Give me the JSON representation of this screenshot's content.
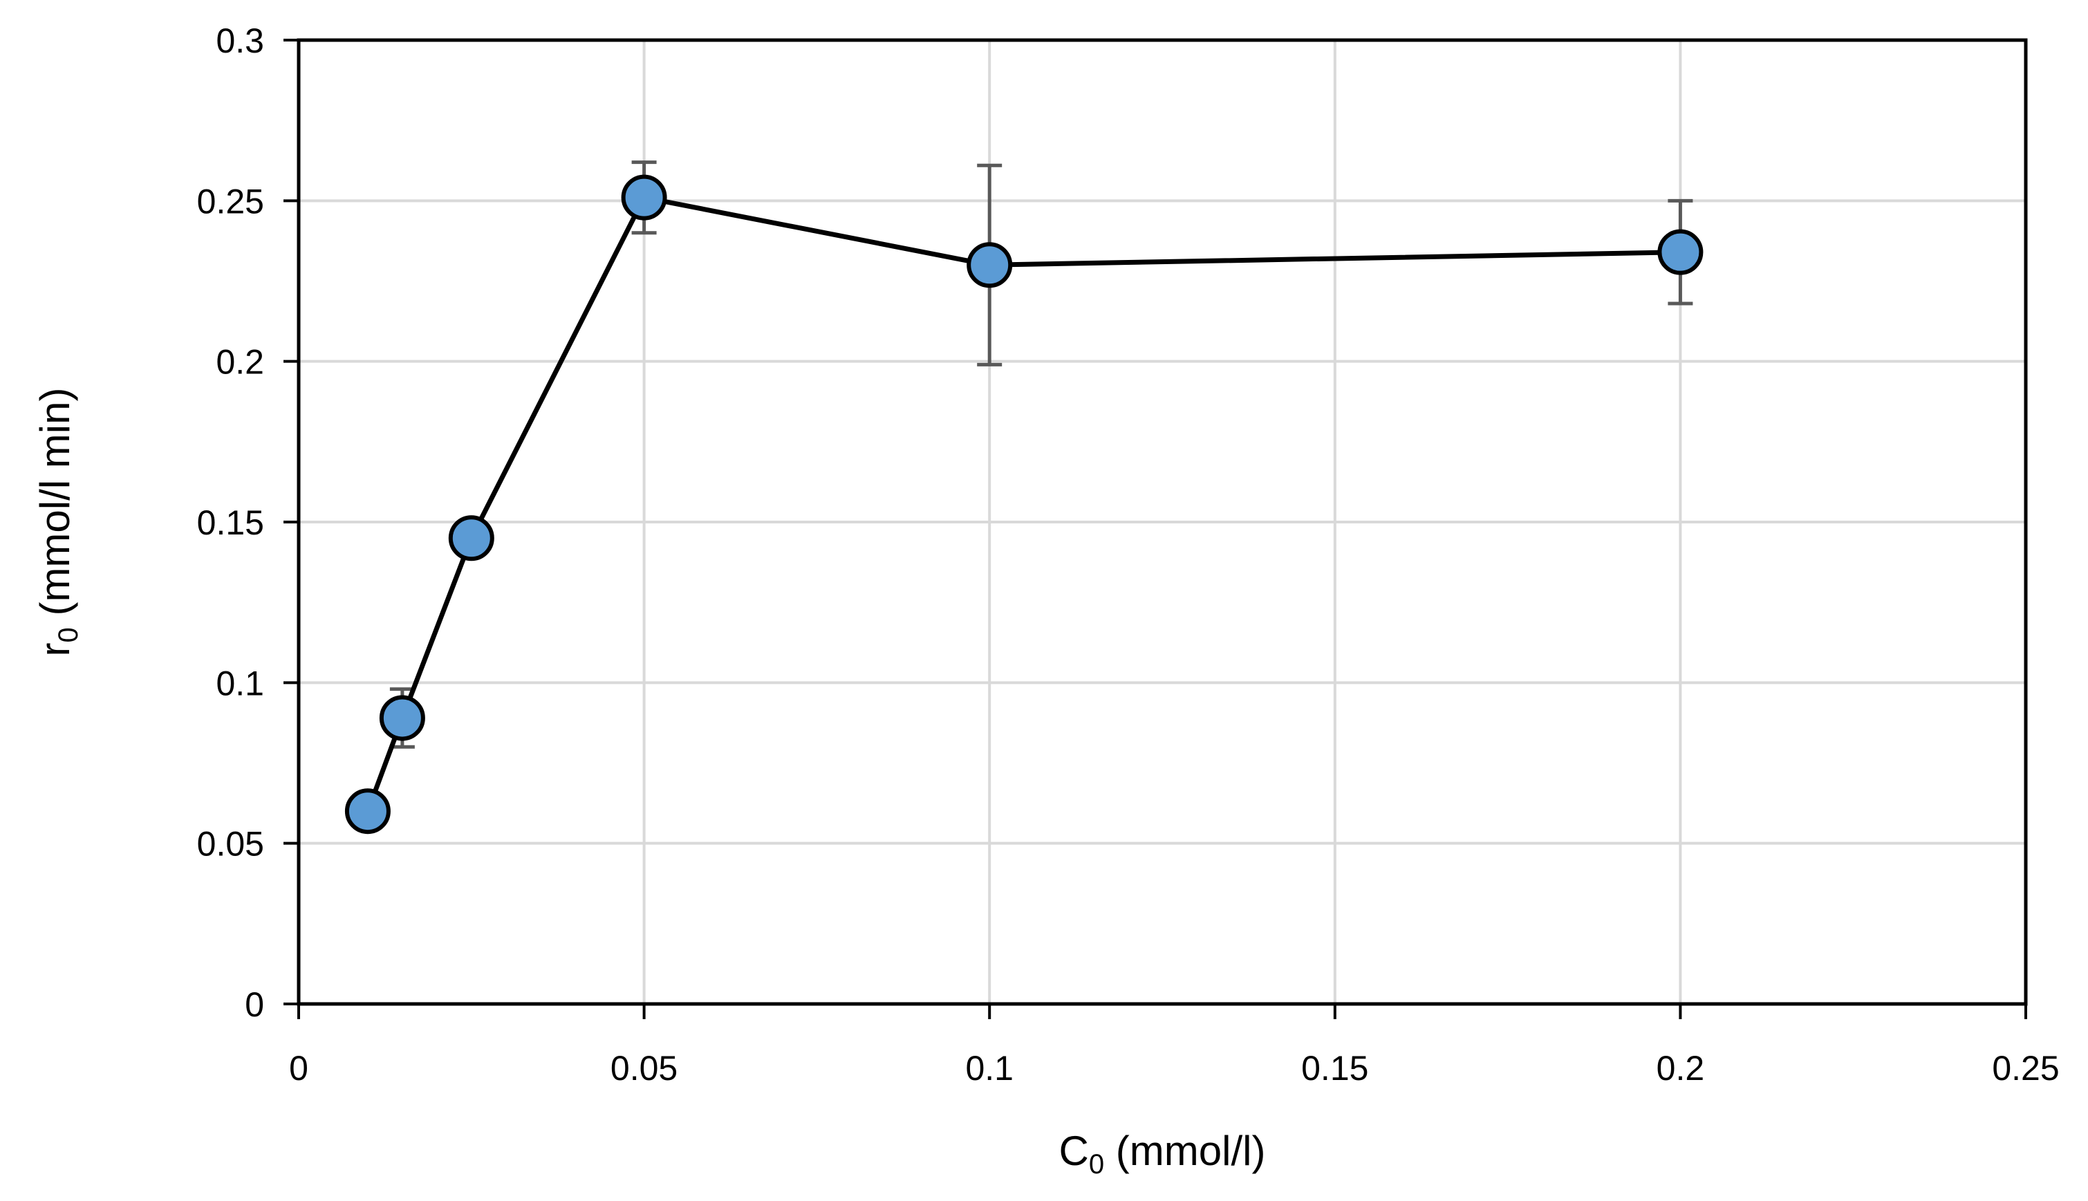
{
  "chart_data": {
    "type": "scatter",
    "title": "",
    "xlabel": {
      "main": "C",
      "sub": "0",
      "rest": " (mmol/l)"
    },
    "ylabel": {
      "main": "r",
      "sub": "0",
      "rest": " (mmol/l min)"
    },
    "xlim": [
      0,
      0.25
    ],
    "ylim": [
      0,
      0.3
    ],
    "xticks": [
      0,
      0.05,
      0.1,
      0.15,
      0.2,
      0.25
    ],
    "xtick_labels": [
      "0",
      "0.05",
      "0.1",
      "0.15",
      "0.2",
      "0.25"
    ],
    "yticks": [
      0,
      0.05,
      0.1,
      0.15,
      0.2,
      0.25,
      0.3
    ],
    "ytick_labels": [
      "0",
      "0.05",
      "0.1",
      "0.15",
      "0.2",
      "0.25",
      "0.3"
    ],
    "grid": true,
    "legend": "none",
    "line_color": "#000000",
    "marker_fill": "#5b9bd5",
    "errorbar_color": "#595959",
    "gridline_color": "#d9d9d9",
    "series": [
      {
        "points": [
          {
            "x": 0.01,
            "y": 0.06,
            "err": null
          },
          {
            "x": 0.015,
            "y": 0.089,
            "err": 0.009
          },
          {
            "x": 0.025,
            "y": 0.145,
            "err": null
          },
          {
            "x": 0.05,
            "y": 0.251,
            "err": 0.011
          },
          {
            "x": 0.1,
            "y": 0.23,
            "err": 0.031
          },
          {
            "x": 0.2,
            "y": 0.234,
            "err": 0.016
          }
        ]
      }
    ]
  }
}
